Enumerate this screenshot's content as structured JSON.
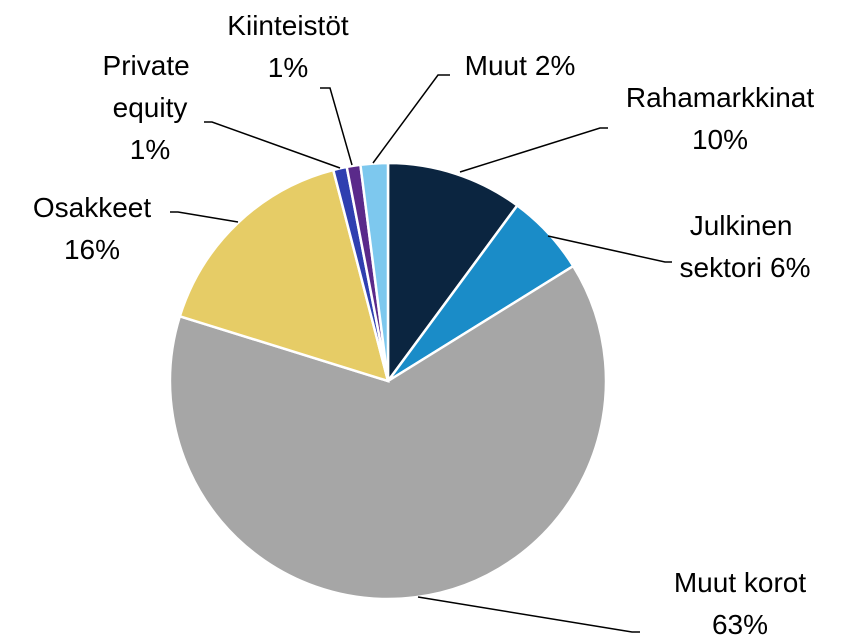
{
  "chart_data": {
    "type": "pie",
    "categories": [
      "Rahamarkkinat",
      "Julkinen sektori",
      "Muut korot",
      "Osakkeet",
      "Private equity",
      "Kiinteistöt",
      "Muut"
    ],
    "values": [
      10,
      6,
      63,
      16,
      1,
      1,
      2
    ],
    "value_labels": [
      "10%",
      "6%",
      "63%",
      "16%",
      "1%",
      "1%",
      "2%"
    ],
    "colors": [
      "#0b2540",
      "#1a8cc8",
      "#a6a6a6",
      "#e6cc66",
      "#2f3fb0",
      "#5a2a8a",
      "#7dc8ee"
    ]
  }
}
